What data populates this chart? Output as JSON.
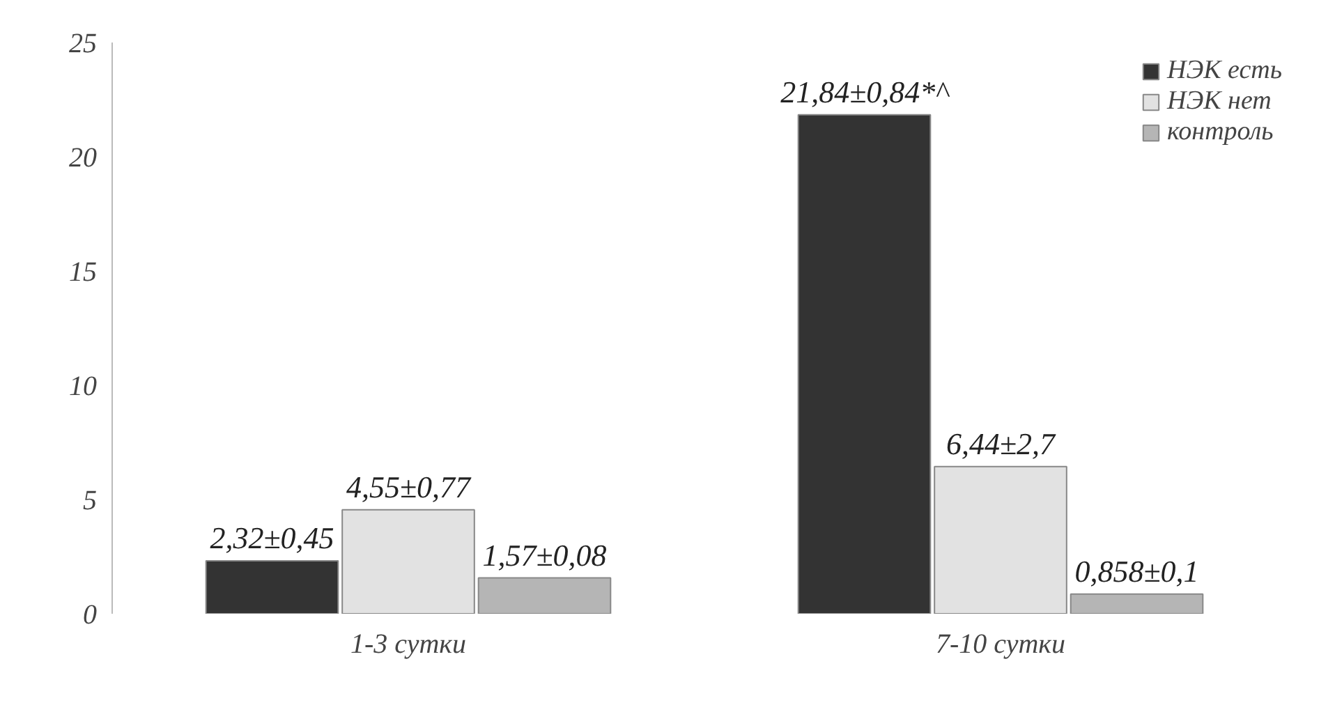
{
  "chart_data": {
    "type": "bar",
    "categories": [
      "1-3 сутки",
      "7-10 сутки"
    ],
    "series": [
      {
        "name": "НЭК есть",
        "color": "#333333",
        "values": [
          2.32,
          21.84
        ],
        "value_labels": [
          "2,32±0,45",
          "21,84±0,84*^"
        ]
      },
      {
        "name": "НЭК нет",
        "color": "#e2e2e2",
        "values": [
          4.55,
          6.44
        ],
        "value_labels": [
          "4,55±0,77",
          "6,44±2,7"
        ]
      },
      {
        "name": "контроль",
        "color": "#b5b5b5",
        "values": [
          1.57,
          0.858
        ],
        "value_labels": [
          "1,57±0,08",
          "0,858±0,1"
        ]
      }
    ],
    "ylim": [
      0,
      25
    ],
    "yticks": [
      0,
      5,
      10,
      15,
      20,
      25
    ],
    "grid": false,
    "legend": "top right"
  }
}
